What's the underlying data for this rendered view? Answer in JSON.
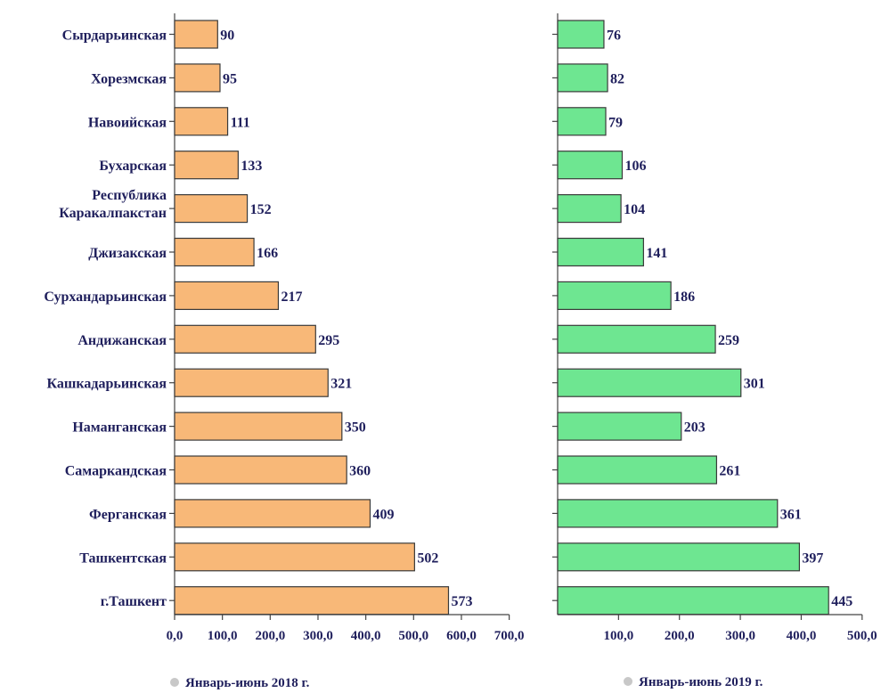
{
  "chart_data": [
    {
      "type": "bar",
      "orientation": "horizontal",
      "categories": [
        "Сырдарьинская",
        "Хорезмская",
        "Навоийская",
        "Бухарская",
        "Республика Каракалпакстан",
        "Джизакская",
        "Сурхандарьинская",
        "Андижанская",
        "Кашкадарьинская",
        "Наманганская",
        "Самаркандская",
        "Ферганская",
        "Ташкентская",
        "г.Ташкент"
      ],
      "category_lines": [
        [
          "Сырдарьинская"
        ],
        [
          "Хорезмская"
        ],
        [
          "Навоийская"
        ],
        [
          "Бухарская"
        ],
        [
          "Республика",
          "Каракалпакстан"
        ],
        [
          "Джизакская"
        ],
        [
          "Сурхандарьинская"
        ],
        [
          "Андижанская"
        ],
        [
          "Кашкадарьинская"
        ],
        [
          "Наманганская"
        ],
        [
          "Самаркандская"
        ],
        [
          "Ферганская"
        ],
        [
          "Ташкентская"
        ],
        [
          "г.Ташкент"
        ]
      ],
      "series": [
        {
          "name": "Январь-июнь 2018 г.",
          "values": [
            90,
            95,
            111,
            133,
            152,
            166,
            217,
            295,
            321,
            350,
            360,
            409,
            502,
            573
          ],
          "color": "#f8b878"
        }
      ],
      "value_labels": [
        "90",
        "95",
        "111",
        "133",
        "152",
        "166",
        "217",
        "295",
        "321",
        "350",
        "360",
        "409",
        "502",
        "573"
      ],
      "xlim": [
        0,
        700
      ],
      "xticks": [
        0,
        100,
        200,
        300,
        400,
        500,
        600,
        700
      ],
      "xtick_labels": [
        "0,0",
        "100,0",
        "200,0",
        "300,0",
        "400,0",
        "500,0",
        "600,0",
        "700,0"
      ],
      "grid": false,
      "legend_position": "bottom"
    },
    {
      "type": "bar",
      "orientation": "horizontal",
      "categories": [
        "Сырдарьинская",
        "Хорезмская",
        "Навоийская",
        "Бухарская",
        "Республика Каракалпакстан",
        "Джизакская",
        "Сурхандарьинская",
        "Андижанская",
        "Кашкадарьинская",
        "Наманганская",
        "Самаркандская",
        "Ферганская",
        "Ташкентская",
        "г.Ташкент"
      ],
      "series": [
        {
          "name": "Январь-июнь 2019 г.",
          "values": [
            76,
            82,
            79,
            106,
            104,
            141,
            186,
            259,
            301,
            203,
            261,
            361,
            397,
            445
          ],
          "color": "#6ee691"
        }
      ],
      "value_labels": [
        "76",
        "82",
        "79",
        "106",
        "104",
        "141",
        "186",
        "259",
        "301",
        "203",
        "261",
        "361",
        "397",
        "445"
      ],
      "xlim": [
        0,
        500
      ],
      "xticks": [
        100,
        200,
        300,
        400,
        500
      ],
      "xtick_labels": [
        "100,0",
        "200,0",
        "300,0",
        "400,0",
        "500,0"
      ],
      "grid": false,
      "legend_position": "bottom"
    }
  ],
  "colors": {
    "text": "#1f1f5c",
    "axis": "#444444",
    "bar_stroke": "#3a3a3a",
    "legend_marker": "#c8c8c8"
  }
}
